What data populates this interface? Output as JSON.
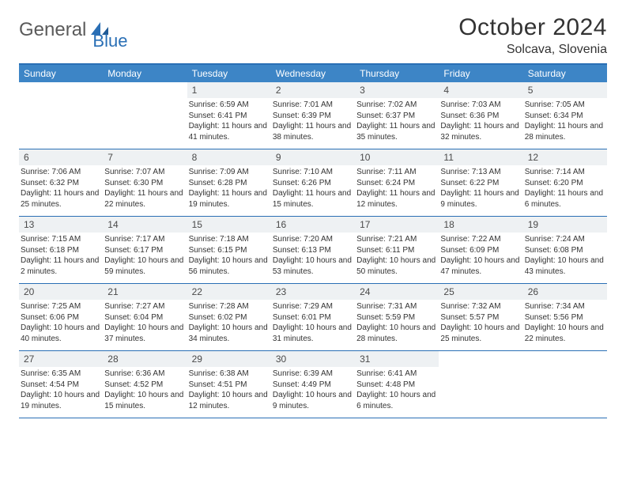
{
  "brand": {
    "text1": "General",
    "text2": "Blue"
  },
  "title": "October 2024",
  "location": "Solcava, Slovenia",
  "colors": {
    "header_bg": "#3d85c6",
    "border": "#2a6fb5",
    "daynum_bg": "#eef1f3",
    "text": "#333333",
    "logo_gray": "#5a5a5a",
    "logo_blue": "#2a6fb5"
  },
  "day_names": [
    "Sunday",
    "Monday",
    "Tuesday",
    "Wednesday",
    "Thursday",
    "Friday",
    "Saturday"
  ],
  "weeks": [
    [
      null,
      null,
      {
        "n": "1",
        "sr": "6:59 AM",
        "ss": "6:41 PM",
        "dl": "11 hours and 41 minutes."
      },
      {
        "n": "2",
        "sr": "7:01 AM",
        "ss": "6:39 PM",
        "dl": "11 hours and 38 minutes."
      },
      {
        "n": "3",
        "sr": "7:02 AM",
        "ss": "6:37 PM",
        "dl": "11 hours and 35 minutes."
      },
      {
        "n": "4",
        "sr": "7:03 AM",
        "ss": "6:36 PM",
        "dl": "11 hours and 32 minutes."
      },
      {
        "n": "5",
        "sr": "7:05 AM",
        "ss": "6:34 PM",
        "dl": "11 hours and 28 minutes."
      }
    ],
    [
      {
        "n": "6",
        "sr": "7:06 AM",
        "ss": "6:32 PM",
        "dl": "11 hours and 25 minutes."
      },
      {
        "n": "7",
        "sr": "7:07 AM",
        "ss": "6:30 PM",
        "dl": "11 hours and 22 minutes."
      },
      {
        "n": "8",
        "sr": "7:09 AM",
        "ss": "6:28 PM",
        "dl": "11 hours and 19 minutes."
      },
      {
        "n": "9",
        "sr": "7:10 AM",
        "ss": "6:26 PM",
        "dl": "11 hours and 15 minutes."
      },
      {
        "n": "10",
        "sr": "7:11 AM",
        "ss": "6:24 PM",
        "dl": "11 hours and 12 minutes."
      },
      {
        "n": "11",
        "sr": "7:13 AM",
        "ss": "6:22 PM",
        "dl": "11 hours and 9 minutes."
      },
      {
        "n": "12",
        "sr": "7:14 AM",
        "ss": "6:20 PM",
        "dl": "11 hours and 6 minutes."
      }
    ],
    [
      {
        "n": "13",
        "sr": "7:15 AM",
        "ss": "6:18 PM",
        "dl": "11 hours and 2 minutes."
      },
      {
        "n": "14",
        "sr": "7:17 AM",
        "ss": "6:17 PM",
        "dl": "10 hours and 59 minutes."
      },
      {
        "n": "15",
        "sr": "7:18 AM",
        "ss": "6:15 PM",
        "dl": "10 hours and 56 minutes."
      },
      {
        "n": "16",
        "sr": "7:20 AM",
        "ss": "6:13 PM",
        "dl": "10 hours and 53 minutes."
      },
      {
        "n": "17",
        "sr": "7:21 AM",
        "ss": "6:11 PM",
        "dl": "10 hours and 50 minutes."
      },
      {
        "n": "18",
        "sr": "7:22 AM",
        "ss": "6:09 PM",
        "dl": "10 hours and 47 minutes."
      },
      {
        "n": "19",
        "sr": "7:24 AM",
        "ss": "6:08 PM",
        "dl": "10 hours and 43 minutes."
      }
    ],
    [
      {
        "n": "20",
        "sr": "7:25 AM",
        "ss": "6:06 PM",
        "dl": "10 hours and 40 minutes."
      },
      {
        "n": "21",
        "sr": "7:27 AM",
        "ss": "6:04 PM",
        "dl": "10 hours and 37 minutes."
      },
      {
        "n": "22",
        "sr": "7:28 AM",
        "ss": "6:02 PM",
        "dl": "10 hours and 34 minutes."
      },
      {
        "n": "23",
        "sr": "7:29 AM",
        "ss": "6:01 PM",
        "dl": "10 hours and 31 minutes."
      },
      {
        "n": "24",
        "sr": "7:31 AM",
        "ss": "5:59 PM",
        "dl": "10 hours and 28 minutes."
      },
      {
        "n": "25",
        "sr": "7:32 AM",
        "ss": "5:57 PM",
        "dl": "10 hours and 25 minutes."
      },
      {
        "n": "26",
        "sr": "7:34 AM",
        "ss": "5:56 PM",
        "dl": "10 hours and 22 minutes."
      }
    ],
    [
      {
        "n": "27",
        "sr": "6:35 AM",
        "ss": "4:54 PM",
        "dl": "10 hours and 19 minutes."
      },
      {
        "n": "28",
        "sr": "6:36 AM",
        "ss": "4:52 PM",
        "dl": "10 hours and 15 minutes."
      },
      {
        "n": "29",
        "sr": "6:38 AM",
        "ss": "4:51 PM",
        "dl": "10 hours and 12 minutes."
      },
      {
        "n": "30",
        "sr": "6:39 AM",
        "ss": "4:49 PM",
        "dl": "10 hours and 9 minutes."
      },
      {
        "n": "31",
        "sr": "6:41 AM",
        "ss": "4:48 PM",
        "dl": "10 hours and 6 minutes."
      },
      null,
      null
    ]
  ],
  "labels": {
    "sunrise": "Sunrise: ",
    "sunset": "Sunset: ",
    "daylight": "Daylight: "
  }
}
